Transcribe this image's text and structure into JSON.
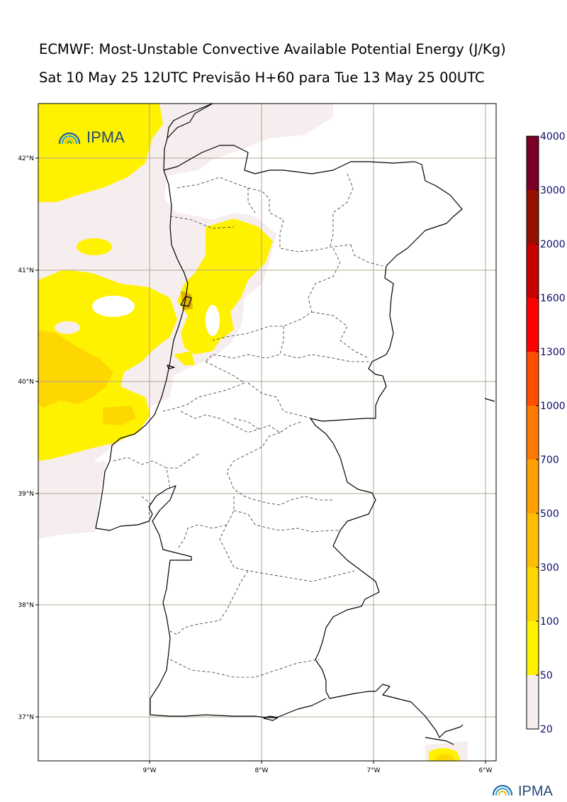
{
  "title_line1": "ECMWF: Most-Unstable Convective Available Potential Energy (J/Kg)",
  "title_line2": "Sat 10 May 25 12UTC Previsão H+60 para Tue 13 May 25 00UTC",
  "logo_text": "IPMA",
  "map": {
    "lon_ticks": [
      "9°W",
      "8°W",
      "7°W",
      "6°W"
    ],
    "lat_ticks": [
      "42°N",
      "41°N",
      "40°N",
      "39°N",
      "38°N",
      "37°N"
    ],
    "grid": true,
    "projection": "lat-lon"
  },
  "colorbar": {
    "levels": [
      "20",
      "50",
      "100",
      "300",
      "500",
      "700",
      "1000",
      "1300",
      "1600",
      "2000",
      "3000",
      "4000"
    ],
    "colors": [
      "#f5edee",
      "#fff200",
      "#ffd700",
      "#ffbf00",
      "#ffa000",
      "#ff7800",
      "#ff4e00",
      "#ff0000",
      "#c80000",
      "#961000",
      "#7a0028",
      "#5a1400"
    ]
  }
}
